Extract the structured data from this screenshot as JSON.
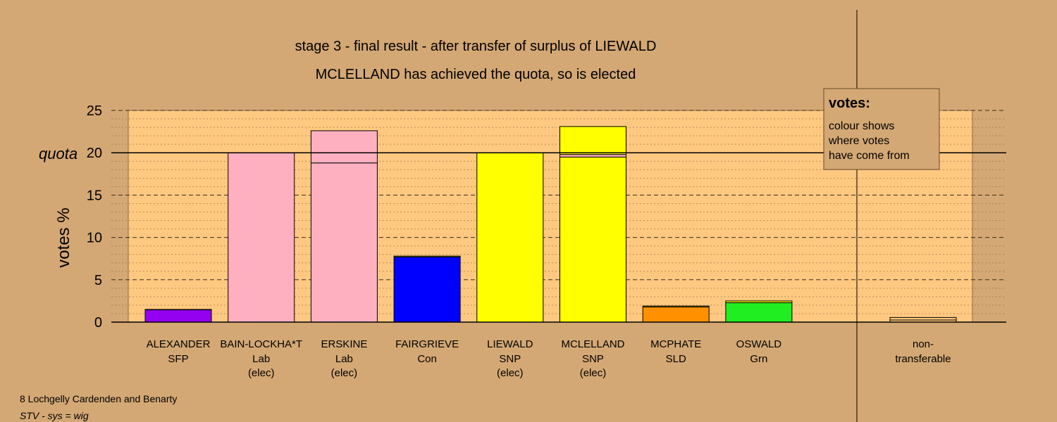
{
  "chart_data": {
    "type": "bar",
    "stacked": true,
    "title": "stage 3 - final result - after transfer of surplus of LIEWALD",
    "subtitle": "MCLELLAND has achieved the quota, so is elected",
    "ylabel": "votes %",
    "ylim": [
      0,
      25
    ],
    "yticks": [
      0,
      5,
      10,
      15,
      20,
      25
    ],
    "quota": 20,
    "quota_label": "quota",
    "grid": true,
    "colors": {
      "SFP": "#9400f0",
      "Lab": "#ffb0c0",
      "Con": "#0000ff",
      "SNP": "#ffff00",
      "SLD": "#ff9000",
      "Grn": "#20ee20",
      "nontransferable": "#ffc878",
      "background": "#d4a874",
      "plot_bg": "#ffc880"
    },
    "candidates": [
      {
        "name": "ALEXANDER",
        "party": "SFP",
        "status": "",
        "segments": [
          {
            "from": "SFP",
            "value": 1.45
          },
          {
            "from": "SNP",
            "value": 0.05
          }
        ]
      },
      {
        "name": "BAIN-LOCKHA*T",
        "party": "Lab",
        "status": "(elec)",
        "segments": [
          {
            "from": "Lab",
            "value": 20.0
          }
        ]
      },
      {
        "name": "ERSKINE",
        "party": "Lab",
        "status": "(elec)",
        "segments": [
          {
            "from": "Lab",
            "value": 18.8
          },
          {
            "from": "Lab",
            "value": 3.8
          }
        ]
      },
      {
        "name": "FAIRGRIEVE",
        "party": "Con",
        "status": "",
        "segments": [
          {
            "from": "Con",
            "value": 7.7
          },
          {
            "from": "SNP",
            "value": 0.1
          }
        ]
      },
      {
        "name": "LIEWALD",
        "party": "SNP",
        "status": "(elec)",
        "segments": [
          {
            "from": "SNP",
            "value": 20.0
          }
        ]
      },
      {
        "name": "MCLELLAND",
        "party": "SNP",
        "status": "(elec)",
        "segments": [
          {
            "from": "SNP",
            "value": 19.5
          },
          {
            "from": "Lab",
            "value": 0.3
          },
          {
            "from": "SNP",
            "value": 3.3
          }
        ]
      },
      {
        "name": "MCPHATE",
        "party": "SLD",
        "status": "",
        "segments": [
          {
            "from": "SLD",
            "value": 1.8
          },
          {
            "from": "SNP",
            "value": 0.1
          }
        ]
      },
      {
        "name": "OSWALD",
        "party": "Grn",
        "status": "",
        "segments": [
          {
            "from": "Grn",
            "value": 2.3
          },
          {
            "from": "SNP",
            "value": 0.2
          }
        ]
      }
    ],
    "nontransferable": {
      "label1": "non-",
      "label2": "transferable",
      "segments": [
        {
          "from": "nontransferable",
          "value": 0.25
        },
        {
          "from": "nontransferable",
          "value": 0.3
        }
      ]
    },
    "legend": {
      "title": "votes:",
      "lines": [
        "colour shows",
        "where votes",
        "have come from"
      ],
      "placement": "top-right"
    }
  },
  "footer": {
    "ward": "8 Lochgelly Cardenden and Benarty",
    "system": "STV - sys = wig"
  }
}
